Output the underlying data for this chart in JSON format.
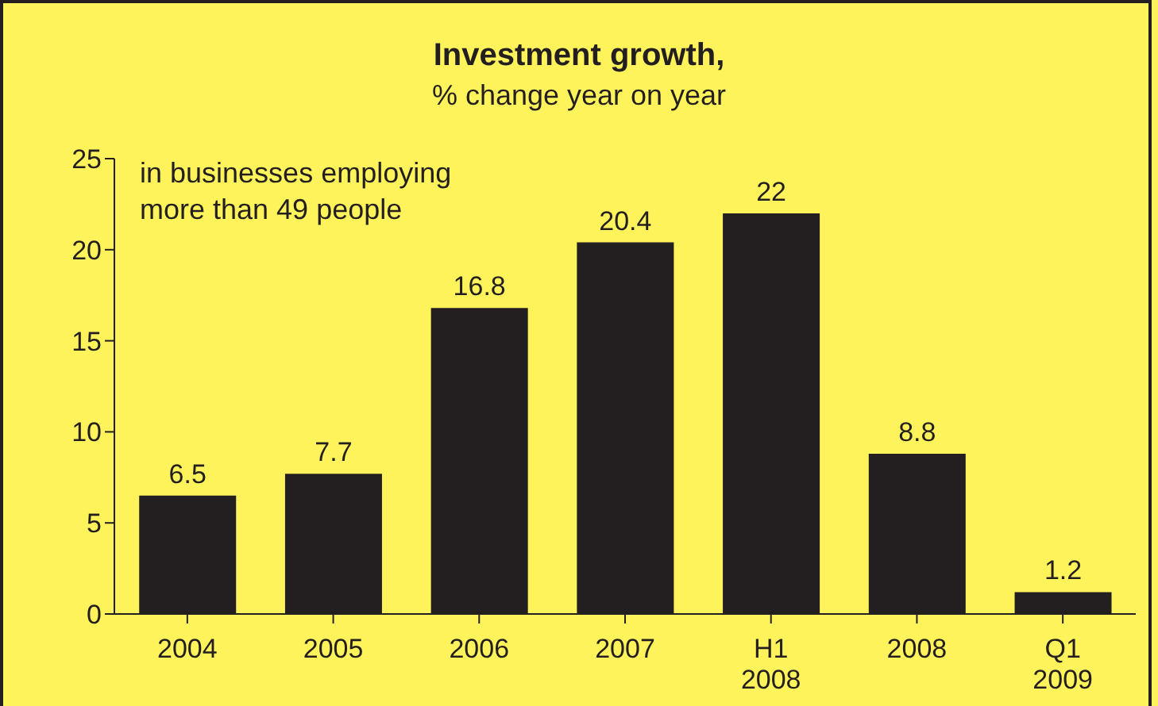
{
  "chart_data": {
    "type": "bar",
    "title": "Investment growth,",
    "subtitle": "% change year on year",
    "annotations": [
      "in businesses employing\nmore than 49 people"
    ],
    "categories": [
      "2004",
      "2005",
      "2006",
      "2007",
      "H1\n2008",
      "2008",
      "Q1\n2009"
    ],
    "values": [
      6.5,
      7.7,
      16.8,
      20.4,
      22,
      8.8,
      1.2
    ],
    "color": "#231f20",
    "ylim": [
      0,
      25
    ],
    "yticks": [
      0,
      5,
      10,
      15,
      20,
      25
    ],
    "grid": false,
    "data_labels": true
  }
}
